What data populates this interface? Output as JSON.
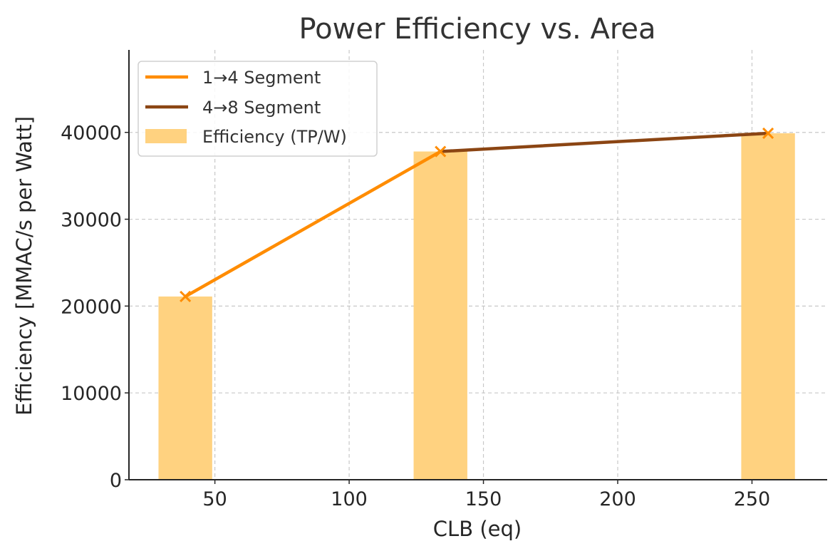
{
  "chart_data": {
    "type": "bar",
    "title": "Power Efficiency vs. Area",
    "xlabel": "CLB (eq)",
    "ylabel": "Efficiency [MMAC/s per Watt]",
    "xlim": [
      18,
      278
    ],
    "ylim": [
      0,
      49500
    ],
    "grid": true,
    "legend_position": "top-left",
    "xticks": [
      50,
      100,
      150,
      200,
      250
    ],
    "yticks": [
      0,
      10000,
      20000,
      30000,
      40000
    ],
    "bars": {
      "name": "Efficiency (TP/W)",
      "color": "#ffd280",
      "bar_width": 20,
      "x": [
        39,
        134,
        256
      ],
      "values": [
        21100,
        37800,
        39900
      ]
    },
    "series": [
      {
        "name": "1→4 Segment",
        "color": "#ff8c00",
        "x": [
          39,
          134
        ],
        "values": [
          21100,
          37800
        ]
      },
      {
        "name": "4→8 Segment",
        "color": "#8b4513",
        "x": [
          134,
          256
        ],
        "values": [
          37800,
          39900
        ]
      }
    ],
    "marker_color": "#ff8c00"
  }
}
